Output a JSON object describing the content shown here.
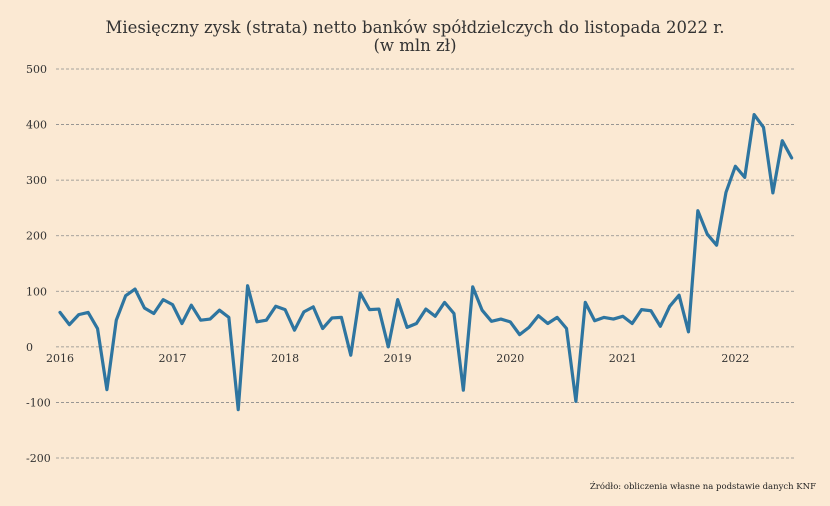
{
  "chart_data": {
    "type": "line",
    "title": "Miesięczny zysk (strata) netto banków spółdzielczych do listopada 2022 r.",
    "subtitle": "(w mln zł)",
    "source": "Źródło: obliczenia własne na podstawie danych KNF",
    "xlabel": "",
    "ylabel": "",
    "ylim": [
      -200,
      500
    ],
    "y_ticks": [
      500,
      400,
      300,
      200,
      100,
      0,
      -100,
      -200
    ],
    "y_tick_labels": [
      "500",
      "400",
      "300",
      "200",
      "100",
      "0",
      "-100",
      "-200"
    ],
    "x_ticks": [
      "2016",
      "2017",
      "2018",
      "2019",
      "2020",
      "2021",
      "2022"
    ],
    "x_tick_months": [
      0,
      12,
      24,
      36,
      48,
      60,
      72
    ],
    "grid": true,
    "legend": "none",
    "line_color": "#2e75a0",
    "series": [
      {
        "values": [
          62,
          40,
          58,
          62,
          33,
          -77,
          48,
          92,
          104,
          70,
          60,
          85,
          76,
          42,
          75,
          48,
          50,
          66,
          53,
          -113,
          110,
          45,
          48,
          73,
          67,
          30,
          63,
          72,
          33,
          52,
          53,
          -15,
          97,
          67,
          68,
          0,
          85,
          35,
          42,
          68,
          55,
          80,
          60,
          -78,
          108,
          66,
          46,
          50,
          45,
          22,
          35,
          56,
          42,
          53,
          33,
          -98,
          80,
          47,
          53,
          50,
          55,
          42,
          67,
          65,
          37,
          73,
          93,
          27,
          245,
          203,
          183,
          278,
          325,
          305,
          418,
          395,
          277,
          371,
          340
        ]
      }
    ]
  }
}
